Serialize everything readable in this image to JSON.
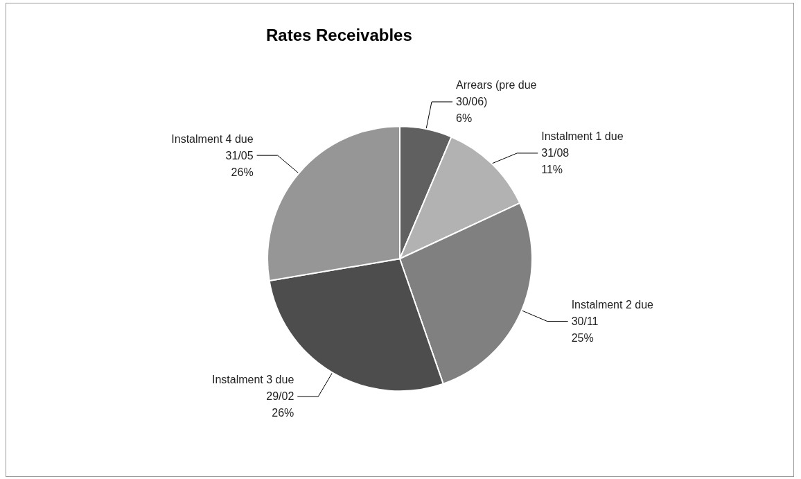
{
  "chart_data": {
    "type": "pie",
    "title": "Rates Receivables",
    "categories": [
      "Arrears (pre due 30/06)",
      "Instalment 1 due 31/08",
      "Instalment 2 due 30/11",
      "Instalment 3 due 29/02",
      "Instalment 4 due 31/05"
    ],
    "values": [
      6,
      11,
      25,
      26,
      26
    ],
    "value_labels": [
      "6%",
      "11%",
      "25%",
      "26%",
      "26%"
    ],
    "colors": [
      "#606060",
      "#b2b2b2",
      "#808080",
      "#4d4d4d",
      "#969696"
    ],
    "legend": false
  }
}
